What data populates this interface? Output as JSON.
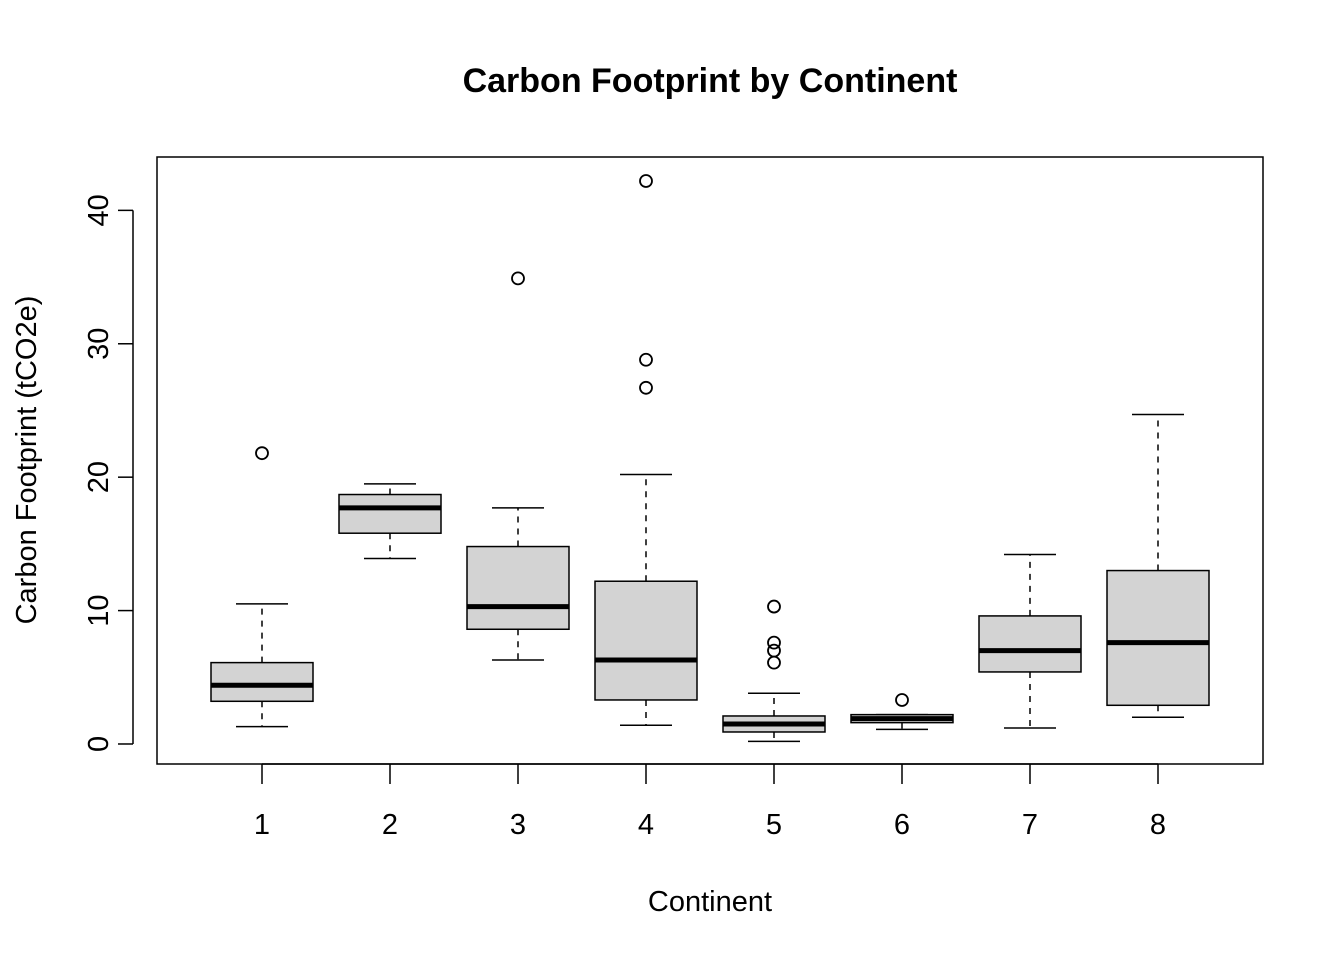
{
  "chart_data": {
    "type": "boxplot",
    "title": "Carbon Footprint by Continent",
    "xlabel": "Continent",
    "ylabel": "Carbon Footprint (tCO2e)",
    "categories": [
      "1",
      "2",
      "3",
      "4",
      "5",
      "6",
      "7",
      "8"
    ],
    "ylim": [
      -1.5,
      44
    ],
    "yticks": [
      "0",
      "10",
      "20",
      "30",
      "40"
    ],
    "grid": false,
    "legend": "none",
    "box_fill": "#d3d3d3",
    "boxes": [
      {
        "category": "1",
        "whisker_low": 1.3,
        "q1": 3.2,
        "median": 4.4,
        "q3": 6.1,
        "whisker_high": 10.5,
        "outliers": [
          21.8
        ]
      },
      {
        "category": "2",
        "whisker_low": 13.9,
        "q1": 15.8,
        "median": 17.7,
        "q3": 18.7,
        "whisker_high": 19.5,
        "outliers": []
      },
      {
        "category": "3",
        "whisker_low": 6.3,
        "q1": 8.6,
        "median": 10.3,
        "q3": 14.8,
        "whisker_high": 17.7,
        "outliers": [
          34.9
        ]
      },
      {
        "category": "4",
        "whisker_low": 1.4,
        "q1": 3.3,
        "median": 6.3,
        "q3": 12.2,
        "whisker_high": 20.2,
        "outliers": [
          26.7,
          28.8,
          42.2
        ]
      },
      {
        "category": "5",
        "whisker_low": 0.2,
        "q1": 0.9,
        "median": 1.5,
        "q3": 2.1,
        "whisker_high": 3.8,
        "outliers": [
          6.1,
          7.0,
          7.6,
          10.3
        ]
      },
      {
        "category": "6",
        "whisker_low": 1.1,
        "q1": 1.6,
        "median": 1.9,
        "q3": 2.2,
        "whisker_high": 2.2,
        "outliers": [
          3.3
        ]
      },
      {
        "category": "7",
        "whisker_low": 1.2,
        "q1": 5.4,
        "median": 7.0,
        "q3": 9.6,
        "whisker_high": 14.2,
        "outliers": []
      },
      {
        "category": "8",
        "whisker_low": 2.0,
        "q1": 2.9,
        "median": 7.6,
        "q3": 13.0,
        "whisker_high": 24.7,
        "outliers": []
      }
    ]
  }
}
